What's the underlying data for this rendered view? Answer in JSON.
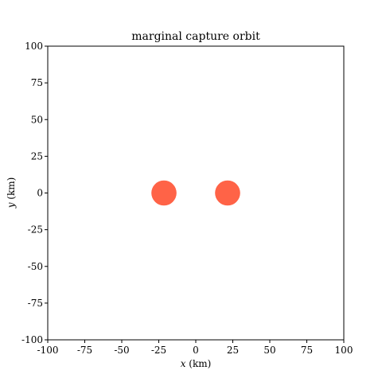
{
  "chart_data": {
    "type": "scatter",
    "title": "marginal capture orbit",
    "xlabel_var": "x",
    "xlabel_unit": " (km)",
    "ylabel_var": "y",
    "ylabel_unit": " (km)",
    "xlim": [
      -100,
      100
    ],
    "ylim": [
      -100,
      100
    ],
    "x_ticks": [
      -100,
      -75,
      -50,
      -25,
      0,
      25,
      50,
      75,
      100
    ],
    "y_ticks": [
      -100,
      -75,
      -50,
      -25,
      0,
      25,
      50,
      75,
      100
    ],
    "grid": false,
    "marker_color": "#ff6347",
    "marker_radius_km": 8.5,
    "points": [
      {
        "x": -21.5,
        "y": 0
      },
      {
        "x": 21.5,
        "y": 0
      }
    ]
  }
}
